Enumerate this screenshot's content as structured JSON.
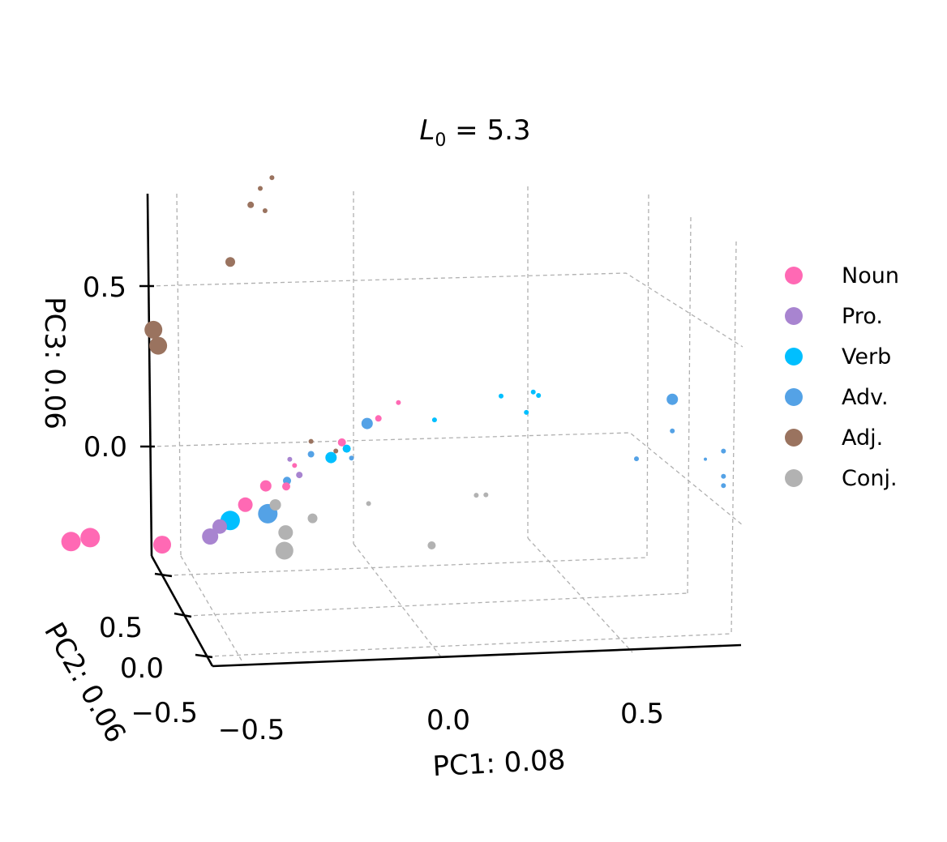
{
  "chart_data": {
    "type": "scatter",
    "title": "L0 = 5.3",
    "xlabel": "PC1: 0.08",
    "ylabel": "PC2: 0.06",
    "zlabel": "PC3: 0.06",
    "x_ticks": [
      "−0.5",
      "0.0",
      "0.5"
    ],
    "y_ticks": [
      "−0.5",
      "0.0",
      "0.5"
    ],
    "z_ticks": [
      "0.0",
      "0.5"
    ],
    "xlim": [
      -0.75,
      0.75
    ],
    "ylim": [
      -0.75,
      0.75
    ],
    "zlim": [
      -0.5,
      0.8
    ],
    "grid": true,
    "legend_position": "right",
    "colors": {
      "Noun": "#ff69b4",
      "Pro.": "#a884d0",
      "Verb": "#00bfff",
      "Adv.": "#54a2e6",
      "Adj.": "#9a735f",
      "Conj.": "#b2b2b2"
    },
    "series": [
      {
        "name": "Noun",
        "points": [
          {
            "x": -0.69,
            "y": -0.62,
            "z": -0.4,
            "s": 12
          },
          {
            "x": -0.65,
            "y": -0.62,
            "z": -0.39,
            "s": 12
          },
          {
            "x": -0.5,
            "y": -0.62,
            "z": -0.42,
            "s": 11
          },
          {
            "x": -0.33,
            "y": -0.58,
            "z": -0.3,
            "s": 9
          },
          {
            "x": -0.29,
            "y": -0.55,
            "z": -0.24,
            "s": 7
          },
          {
            "x": -0.25,
            "y": -0.52,
            "z": -0.24,
            "s": 5
          },
          {
            "x": -0.14,
            "y": -0.45,
            "z": -0.1,
            "s": 5
          },
          {
            "x": -0.07,
            "y": -0.38,
            "z": -0.02,
            "s": 4
          },
          {
            "x": -0.23,
            "y": -0.55,
            "z": -0.18,
            "s": 3
          },
          {
            "x": -0.03,
            "y": -0.36,
            "z": 0.03,
            "s": 3
          }
        ]
      },
      {
        "name": "Pro.",
        "points": [
          {
            "x": -0.4,
            "y": -0.62,
            "z": -0.4,
            "s": 10
          },
          {
            "x": -0.38,
            "y": -0.62,
            "z": -0.37,
            "s": 9
          },
          {
            "x": -0.22,
            "y": -0.55,
            "z": -0.21,
            "s": 4
          },
          {
            "x": -0.24,
            "y": -0.55,
            "z": -0.16,
            "s": 3
          }
        ]
      },
      {
        "name": "Verb",
        "points": [
          {
            "x": -0.36,
            "y": -0.6,
            "z": -0.35,
            "s": 12
          },
          {
            "x": -0.16,
            "y": -0.48,
            "z": -0.15,
            "s": 7
          },
          {
            "x": -0.13,
            "y": -0.45,
            "z": -0.12,
            "s": 5
          },
          {
            "x": 0.04,
            "y": -0.3,
            "z": -0.02,
            "s": 3
          },
          {
            "x": 0.17,
            "y": -0.2,
            "z": 0.06,
            "s": 3
          },
          {
            "x": 0.22,
            "y": -0.17,
            "z": 0.01,
            "s": 3
          },
          {
            "x": 0.23,
            "y": -0.12,
            "z": 0.08,
            "s": 3
          },
          {
            "x": 0.24,
            "y": -0.11,
            "z": 0.07,
            "s": 3
          }
        ]
      },
      {
        "name": "Adv.",
        "points": [
          {
            "x": -0.29,
            "y": -0.5,
            "z": -0.32,
            "s": 12
          },
          {
            "x": -0.25,
            "y": -0.5,
            "z": -0.22,
            "s": 5
          },
          {
            "x": -0.2,
            "y": -0.5,
            "z": -0.14,
            "s": 4
          },
          {
            "x": -0.12,
            "y": -0.45,
            "z": -0.15,
            "s": 3
          },
          {
            "x": -0.09,
            "y": -0.42,
            "z": -0.04,
            "s": 7
          },
          {
            "x": 0.5,
            "y": 0.1,
            "z": 0.07,
            "s": 7
          },
          {
            "x": 0.45,
            "y": -0.18,
            "z": -0.15,
            "s": 3
          },
          {
            "x": 0.5,
            "y": 0.1,
            "z": -0.03,
            "s": 3
          },
          {
            "x": 0.56,
            "y": 0.2,
            "z": -0.11,
            "s": 2
          },
          {
            "x": 0.58,
            "y": 0.4,
            "z": -0.06,
            "s": 3
          },
          {
            "x": 0.58,
            "y": 0.4,
            "z": -0.14,
            "s": 3
          },
          {
            "x": 0.58,
            "y": 0.4,
            "z": -0.17,
            "s": 3
          }
        ]
      },
      {
        "name": "Adj.",
        "points": [
          {
            "x": -0.52,
            "y": -0.6,
            "z": 0.25,
            "s": 11
          },
          {
            "x": -0.51,
            "y": -0.6,
            "z": 0.2,
            "s": 11
          },
          {
            "x": -0.37,
            "y": -0.48,
            "z": 0.47,
            "s": 6
          },
          {
            "x": -0.33,
            "y": -0.45,
            "z": 0.65,
            "s": 4
          },
          {
            "x": -0.31,
            "y": -0.45,
            "z": 0.7,
            "s": 3
          },
          {
            "x": -0.3,
            "y": -0.45,
            "z": 0.63,
            "s": 3
          },
          {
            "x": -0.29,
            "y": -0.4,
            "z": 0.74,
            "s": 3
          },
          {
            "x": -0.2,
            "y": -0.5,
            "z": -0.1,
            "s": 3
          },
          {
            "x": -0.15,
            "y": -0.48,
            "z": -0.13,
            "s": 3
          }
        ]
      },
      {
        "name": "Conj.",
        "points": [
          {
            "x": -0.24,
            "y": -0.68,
            "z": -0.46,
            "s": 11
          },
          {
            "x": -0.24,
            "y": -0.65,
            "z": -0.4,
            "s": 9
          },
          {
            "x": -0.27,
            "y": -0.55,
            "z": -0.3,
            "s": 7
          },
          {
            "x": -0.19,
            "y": -0.58,
            "z": -0.35,
            "s": 6
          },
          {
            "x": -0.08,
            "y": -0.5,
            "z": -0.3,
            "s": 3
          },
          {
            "x": 0.06,
            "y": -0.6,
            "z": -0.45,
            "s": 5
          },
          {
            "x": 0.14,
            "y": -0.45,
            "z": -0.28,
            "s": 3
          },
          {
            "x": 0.16,
            "y": -0.45,
            "z": -0.28,
            "s": 3
          }
        ]
      }
    ]
  }
}
